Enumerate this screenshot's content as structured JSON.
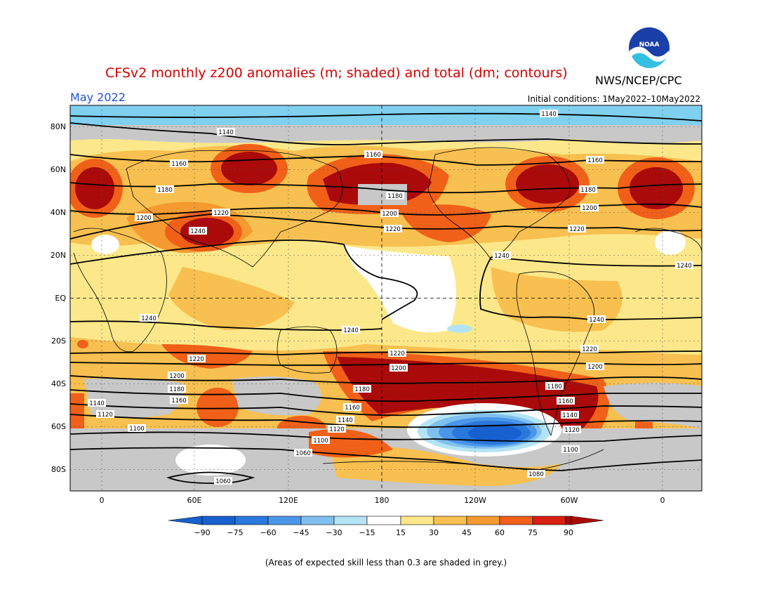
{
  "title": "CFSv2 monthly z200 anomalies (m; shaded) and total (dm; contours)",
  "agency": "NWS/NCEP/CPC",
  "logo_text": "NOAA",
  "month": "May 2022",
  "initial_conditions": "Initial conditions: 1May2022–10May2022",
  "footnote": "(Areas of expected skill less than 0.3 are shaded in grey.)",
  "colors": {
    "title": "#d40000",
    "month": "#1e50e0",
    "neg90": "#1660d0",
    "neg75": "#2a78de",
    "neg60": "#4a96e8",
    "neg45": "#80c0f0",
    "neg30": "#b4e4f4",
    "neutral": "#ffffff",
    "pos15": "#fce88a",
    "pos30": "#f8c050",
    "pos45": "#f49a30",
    "pos60": "#f06018",
    "pos75": "#d82010",
    "pos90": "#aa0a0a",
    "grey": "#c8c8c8"
  },
  "colorbar": {
    "labels": [
      "−90",
      "−75",
      "−60",
      "−45",
      "−30",
      "−15",
      "15",
      "30",
      "45",
      "60",
      "75",
      "90"
    ]
  },
  "axes": {
    "lat_labels": [
      "80N",
      "60N",
      "40N",
      "20N",
      "EQ",
      "20S",
      "40S",
      "60S",
      "80S"
    ],
    "lon_labels": [
      "0",
      "60E",
      "120E",
      "180",
      "120W",
      "60W",
      "0"
    ]
  },
  "contour_labels": [
    "1140",
    "1160",
    "1180",
    "1200",
    "1220",
    "1240",
    "1100",
    "1120",
    "1080",
    "1060"
  ]
}
